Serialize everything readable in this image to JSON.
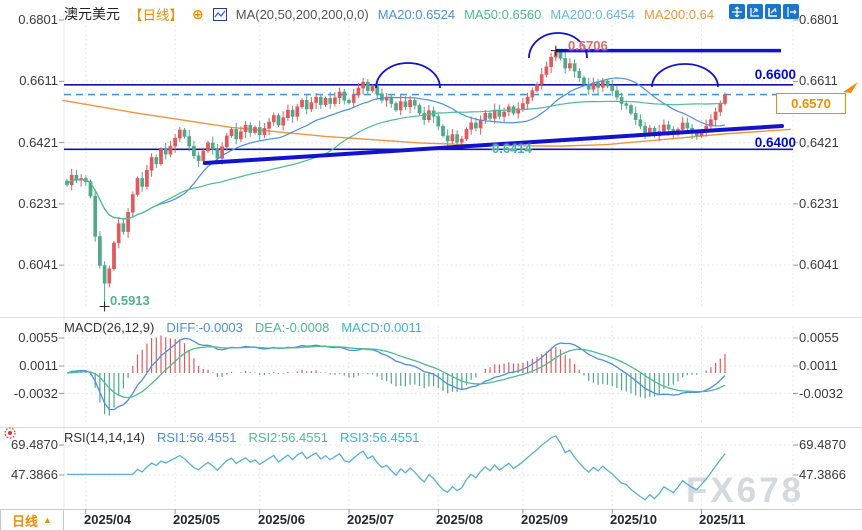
{
  "header": {
    "symbol": "澳元美元",
    "period_tag": "【日线】",
    "plus_icon": "⊕",
    "ma_param": "MA(20,50,200,200,0,0)",
    "ma20": "MA20:0.6524",
    "ma50": "MA50:0.6560",
    "ma200a": "MA200:0.6454",
    "ma200b": "MA200:0.64",
    "toolbar_icons": [
      "move-icon",
      "axis-zoom-icon",
      "axis-scale-icon",
      "pan-right-icon"
    ]
  },
  "main_chart": {
    "y_labels": [
      "0.6801",
      "0.6611",
      "0.6421",
      "0.6231",
      "0.6041"
    ],
    "annotations": {
      "high_label": "0.6706",
      "low_label": "0.5913",
      "mid_label": "0.6414",
      "resistance_label": "0.6600",
      "support_label": "0.6400",
      "current_price": "0.6570"
    }
  },
  "macd_panel": {
    "title": "MACD(26,12,9)",
    "diff_text": "DIFF:-0.0003",
    "dea_text": "DEA:-0.0008",
    "macd_text": "MACD:0.0011",
    "y_labels": [
      "0.0055",
      "0.0011",
      "-0.0032"
    ]
  },
  "rsi_panel": {
    "title": "RSI(14,14,14)",
    "rsi1_text": "RSI1:56.4551",
    "rsi2_text": "RSI2:56.4551",
    "rsi3_text": "RSI3:56.4551",
    "y_labels": [
      "69.4870",
      "47.3866"
    ]
  },
  "bottom": {
    "tab_label": "日线",
    "tab_arrow": "▲",
    "months": [
      "2025/04",
      "2025/05",
      "2025/06",
      "2025/07",
      "2025/08",
      "2025/09",
      "2025/10",
      "2025/11"
    ]
  },
  "watermark": "FX678",
  "colors": {
    "up": "#de5a5e",
    "down": "#4fa98a",
    "ma20": "#4a90e2",
    "ma50": "#4cbb94",
    "ma200": "#f0953f",
    "ma200a_text": "#66b7e3",
    "annotation_navy": "#1313cf",
    "thin_navy": "#1212b0",
    "dashed_blue": "#3d9ae8",
    "orange": "#f08c00",
    "label_blue": "#0008d8",
    "high_label": "#e06a6a",
    "low_label": "#55b08c",
    "mid_label": "#45b3a3",
    "diff_blue": "#4a90e2",
    "dea_green": "#4cbb94",
    "macd_cyan": "#36b6d8",
    "rsi_line": "#55b1d9",
    "watermark": "#d5d9df",
    "toolbar_blue": "#1b75cf",
    "grid": "#dfe3e8",
    "text": "#3a3a3a",
    "sun_red": "#e03030"
  },
  "chart_data": {
    "type": "candlestick",
    "symbol": "AUD/USD 澳元美元",
    "timeframe": "daily 日线",
    "title": "澳元美元 【日线】",
    "x_range": [
      "2025/04",
      "2025/11"
    ],
    "price_axis": [
      0.6801,
      0.6611,
      0.6421,
      0.6231,
      0.6041
    ],
    "macd_axis": [
      0.0055,
      0.0011,
      -0.0032
    ],
    "rsi_axis": [
      69.487,
      47.3866
    ],
    "month_start_indices": {
      "2025/04": 4,
      "2025/05": 23,
      "2025/06": 41,
      "2025/07": 60,
      "2025/08": 79,
      "2025/09": 97,
      "2025/10": 116,
      "2025/11": 135
    },
    "closes": [
      0.629,
      0.632,
      0.6305,
      0.631,
      0.63,
      0.6255,
      0.613,
      0.604,
      0.5985,
      0.603,
      0.611,
      0.617,
      0.6145,
      0.6205,
      0.626,
      0.631,
      0.6285,
      0.6335,
      0.6375,
      0.6355,
      0.64,
      0.6385,
      0.641,
      0.6435,
      0.646,
      0.644,
      0.641,
      0.638,
      0.6365,
      0.6395,
      0.642,
      0.64,
      0.6372,
      0.6408,
      0.6442,
      0.6462,
      0.6432,
      0.6455,
      0.6475,
      0.6452,
      0.6468,
      0.6445,
      0.6465,
      0.6485,
      0.6505,
      0.6475,
      0.6498,
      0.6522,
      0.6502,
      0.6532,
      0.6552,
      0.6525,
      0.6545,
      0.6562,
      0.6538,
      0.6558,
      0.6542,
      0.656,
      0.6578,
      0.6552,
      0.6545,
      0.6568,
      0.659,
      0.6608,
      0.6582,
      0.6596,
      0.6572,
      0.6552,
      0.6562,
      0.6542,
      0.6522,
      0.6548,
      0.6532,
      0.6552,
      0.6536,
      0.6512,
      0.6492,
      0.652,
      0.6502,
      0.6472,
      0.6442,
      0.6426,
      0.6446,
      0.6422,
      0.6432,
      0.6462,
      0.6482,
      0.6466,
      0.6492,
      0.6512,
      0.6496,
      0.6522,
      0.6502,
      0.6516,
      0.6532,
      0.6512,
      0.6526,
      0.6542,
      0.6562,
      0.6582,
      0.6602,
      0.6632,
      0.6656,
      0.6686,
      0.6702,
      0.6682,
      0.6652,
      0.6666,
      0.6642,
      0.6622,
      0.6602,
      0.6586,
      0.6606,
      0.6592,
      0.6612,
      0.6596,
      0.6582,
      0.6562,
      0.6542,
      0.6536,
      0.6512,
      0.6492,
      0.6472,
      0.6452,
      0.6466,
      0.6442,
      0.6456,
      0.6476,
      0.6462,
      0.6446,
      0.6462,
      0.6482,
      0.6466,
      0.6452,
      0.6442,
      0.6456,
      0.6472,
      0.6492,
      0.6516,
      0.6542,
      0.657
    ],
    "key_points": {
      "high": 0.6706,
      "high_index": 104,
      "low": 0.5913,
      "low_index": 8,
      "current": 0.657,
      "resistance": 0.66,
      "support": 0.64,
      "ma200_value_label": 0.6414
    },
    "ma200_path": [
      [
        -1,
        0.6552
      ],
      [
        15,
        0.6512
      ],
      [
        35,
        0.6468
      ],
      [
        55,
        0.644
      ],
      [
        75,
        0.642
      ],
      [
        90,
        0.6412
      ],
      [
        105,
        0.641
      ],
      [
        115,
        0.6415
      ],
      [
        125,
        0.6428
      ],
      [
        140,
        0.6448
      ],
      [
        154,
        0.6462
      ]
    ],
    "indicators": {
      "ma20": 0.6524,
      "ma50": 0.656,
      "ma200_1": 0.6454,
      "ma200_2": 0.64,
      "macd": {
        "diff": -0.0003,
        "dea": -0.0008,
        "macd": 0.0011
      },
      "rsi": {
        "rsi1": 56.4551,
        "rsi2": 56.4551,
        "rsi3": 56.4551
      }
    },
    "legend_position": "top",
    "grid": true
  }
}
